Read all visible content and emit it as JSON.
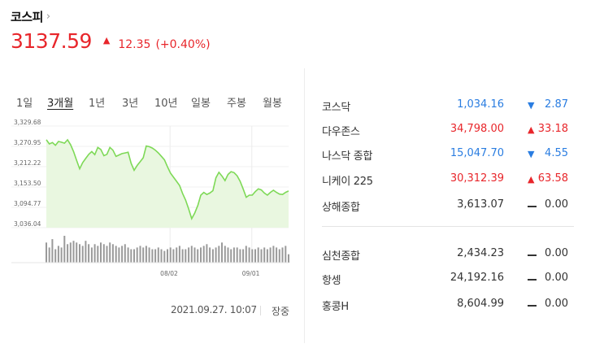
{
  "index": {
    "name": "코스피",
    "chevron": "›",
    "price": "3137.59",
    "arrow": "▲",
    "change": "12.35",
    "change_pct": "(+0.40%)",
    "color": "#e8262b"
  },
  "period_tabs": [
    "1일",
    "3개월",
    "1년",
    "3년",
    "10년",
    "일봉",
    "주봉",
    "월봉"
  ],
  "active_tab": "3개월",
  "chart_data": {
    "type": "line",
    "title": "",
    "y_ticks": [
      "3,329.68",
      "3,270.95",
      "3,212.22",
      "3,153.50",
      "3,094.77",
      "3,036.04"
    ],
    "x_ticks": [
      "08/02",
      "09/01"
    ],
    "ylim": [
      3036.04,
      3329.68
    ],
    "grid": true,
    "line_color": "#7ed957",
    "fill_color": "#e9f7e0",
    "values": [
      3290,
      3278,
      3282,
      3274,
      3285,
      3283,
      3280,
      3290,
      3276,
      3256,
      3230,
      3206,
      3224,
      3236,
      3248,
      3256,
      3247,
      3268,
      3262,
      3244,
      3248,
      3268,
      3260,
      3242,
      3246,
      3250,
      3252,
      3254,
      3222,
      3202,
      3216,
      3227,
      3238,
      3272,
      3270,
      3266,
      3260,
      3252,
      3242,
      3232,
      3212,
      3194,
      3182,
      3170,
      3158,
      3135,
      3116,
      3090,
      3062,
      3078,
      3100,
      3130,
      3138,
      3132,
      3136,
      3143,
      3180,
      3196,
      3185,
      3172,
      3190,
      3198,
      3195,
      3186,
      3170,
      3148,
      3124,
      3130,
      3130,
      3140,
      3148,
      3145,
      3136,
      3130,
      3138,
      3144,
      3138,
      3133,
      3132,
      3138,
      3142
    ],
    "volume": [
      12,
      9,
      14,
      8,
      10,
      9,
      16,
      11,
      12,
      13,
      12,
      11,
      10,
      13,
      11,
      9,
      11,
      10,
      12,
      11,
      10,
      12,
      11,
      10,
      9,
      10,
      11,
      9,
      8,
      8,
      9,
      10,
      9,
      10,
      9,
      8,
      8,
      9,
      8,
      7,
      8,
      9,
      8,
      9,
      10,
      8,
      8,
      9,
      10,
      9,
      8,
      9,
      10,
      11,
      9,
      8,
      9,
      10,
      12,
      10,
      9,
      8,
      9,
      9,
      8,
      8,
      10,
      9,
      8,
      8,
      9,
      8,
      9,
      8,
      9,
      10,
      9,
      8,
      9,
      10,
      5
    ]
  },
  "timestamp": "2021.09.27. 10:07",
  "market_status": "장중",
  "indices": [
    {
      "name": "코스닥",
      "value": "1,034.16",
      "arrow": "▼",
      "change": "2.87",
      "dir": "down"
    },
    {
      "name": "다우존스",
      "value": "34,798.00",
      "arrow": "▲",
      "change": "33.18",
      "dir": "up"
    },
    {
      "name": "나스닥 종합",
      "value": "15,047.70",
      "arrow": "▼",
      "change": "4.55",
      "dir": "down"
    },
    {
      "name": "니케이 225",
      "value": "30,312.39",
      "arrow": "▲",
      "change": "63.58",
      "dir": "up"
    },
    {
      "name": "상해종합",
      "value": "3,613.07",
      "arrow": "",
      "change": "0.00",
      "dir": "flat"
    },
    {
      "name": "심천종합",
      "value": "2,434.23",
      "arrow": "",
      "change": "0.00",
      "dir": "flat"
    },
    {
      "name": "항셍",
      "value": "24,192.16",
      "arrow": "",
      "change": "0.00",
      "dir": "flat"
    },
    {
      "name": "홍콩H",
      "value": "8,604.99",
      "arrow": "",
      "change": "0.00",
      "dir": "flat"
    }
  ]
}
